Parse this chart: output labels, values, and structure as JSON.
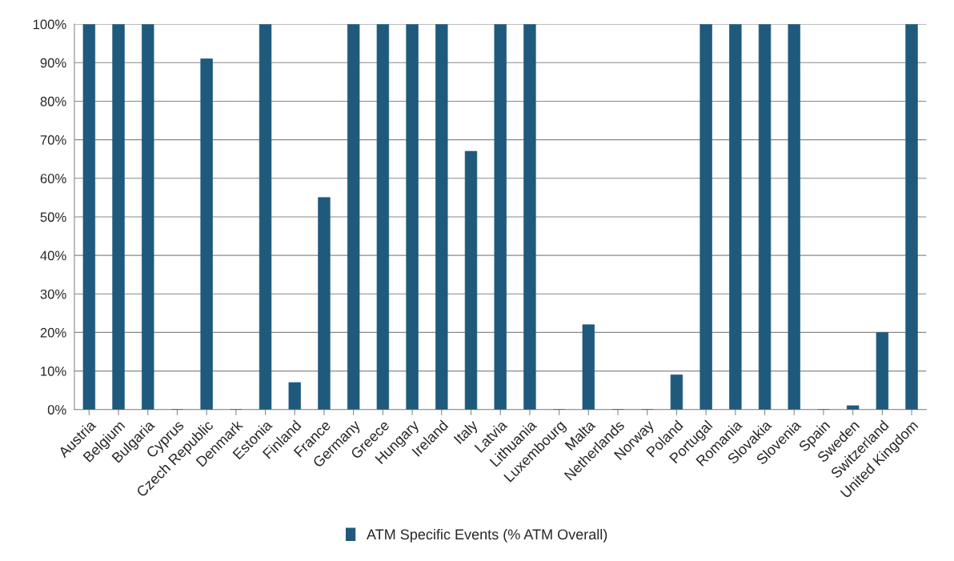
{
  "chart_data": {
    "type": "bar",
    "categories": [
      "Austria",
      "Belgium",
      "Bulgaria",
      "Cyprus",
      "Czech Republic",
      "Denmark",
      "Estonia",
      "Finland",
      "France",
      "Germany",
      "Greece",
      "Hungary",
      "Ireland",
      "Italy",
      "Latvia",
      "Lithuania",
      "Luxembourg",
      "Malta",
      "Netherlands",
      "Norway",
      "Poland",
      "Portugal",
      "Romania",
      "Slovakia",
      "Slovenia",
      "Spain",
      "Sweden",
      "Switzerland",
      "United Kingdom"
    ],
    "series": [
      {
        "name": "ATM Specific Events (% ATM Overall)",
        "color": "#1f5a7c",
        "values": [
          100,
          100,
          100,
          0,
          91,
          0,
          100,
          7,
          55,
          100,
          100,
          100,
          100,
          67,
          100,
          100,
          0,
          22,
          0,
          0,
          9,
          100,
          100,
          100,
          100,
          0,
          1,
          20,
          100
        ]
      }
    ],
    "ylim": [
      0,
      100
    ],
    "yticks": [
      {
        "value": 0,
        "label": "0%"
      },
      {
        "value": 10,
        "label": "10%"
      },
      {
        "value": 20,
        "label": "20%"
      },
      {
        "value": 30,
        "label": "30%"
      },
      {
        "value": 40,
        "label": "40%"
      },
      {
        "value": 50,
        "label": "50%"
      },
      {
        "value": 60,
        "label": "60%"
      },
      {
        "value": 70,
        "label": "70%"
      },
      {
        "value": 80,
        "label": "80%"
      },
      {
        "value": 90,
        "label": "90%"
      },
      {
        "value": 100,
        "label": "100%"
      }
    ],
    "grid": "y",
    "legend": "bottom"
  }
}
